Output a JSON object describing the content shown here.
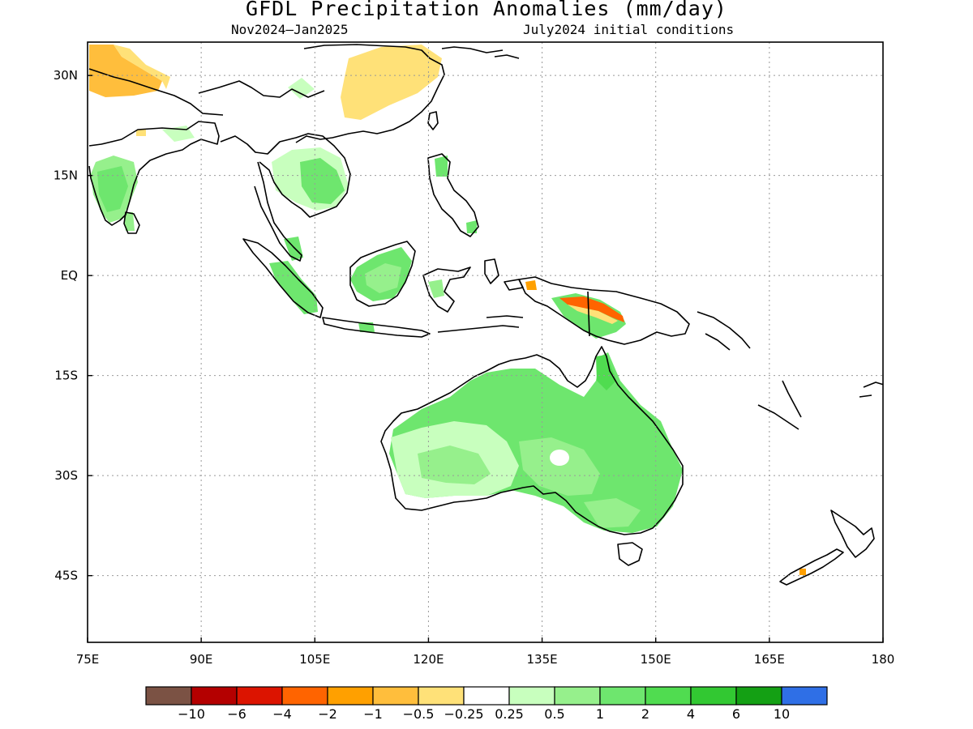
{
  "title": "GFDL Precipitation Anomalies (mm/day)",
  "subtitle_left": "Nov2024–Jan2025",
  "subtitle_right": "July2024 initial conditions",
  "lon_ticks": [
    {
      "value": 75,
      "label": "75E"
    },
    {
      "value": 90,
      "label": "90E"
    },
    {
      "value": 105,
      "label": "105E"
    },
    {
      "value": 120,
      "label": "120E"
    },
    {
      "value": 135,
      "label": "135E"
    },
    {
      "value": 150,
      "label": "150E"
    },
    {
      "value": 165,
      "label": "165E"
    },
    {
      "value": 180,
      "label": "180"
    }
  ],
  "lat_ticks": [
    {
      "value": 30,
      "label": "30N"
    },
    {
      "value": 15,
      "label": "15N"
    },
    {
      "value": 0,
      "label": "EQ"
    },
    {
      "value": -15,
      "label": "15S"
    },
    {
      "value": -30,
      "label": "30S"
    },
    {
      "value": -45,
      "label": "45S"
    }
  ],
  "extent": {
    "lon_min": 75,
    "lon_max": 180,
    "lat_min": -55,
    "lat_max": 35
  },
  "colorbar": {
    "colors": [
      "#7b5244",
      "#b40000",
      "#dc1400",
      "#ff6400",
      "#ffa000",
      "#ffbe3c",
      "#ffe178",
      "#ffffff",
      "#c8ffbe",
      "#96f08c",
      "#6ee66e",
      "#50dc50",
      "#32c832",
      "#14a014",
      "#2f6fe6"
    ],
    "labels": [
      "−10",
      "−6",
      "−4",
      "−2",
      "−1",
      "−0.5",
      "−0.25",
      "0.25",
      "0.5",
      "1",
      "2",
      "4",
      "6",
      "10"
    ]
  }
}
